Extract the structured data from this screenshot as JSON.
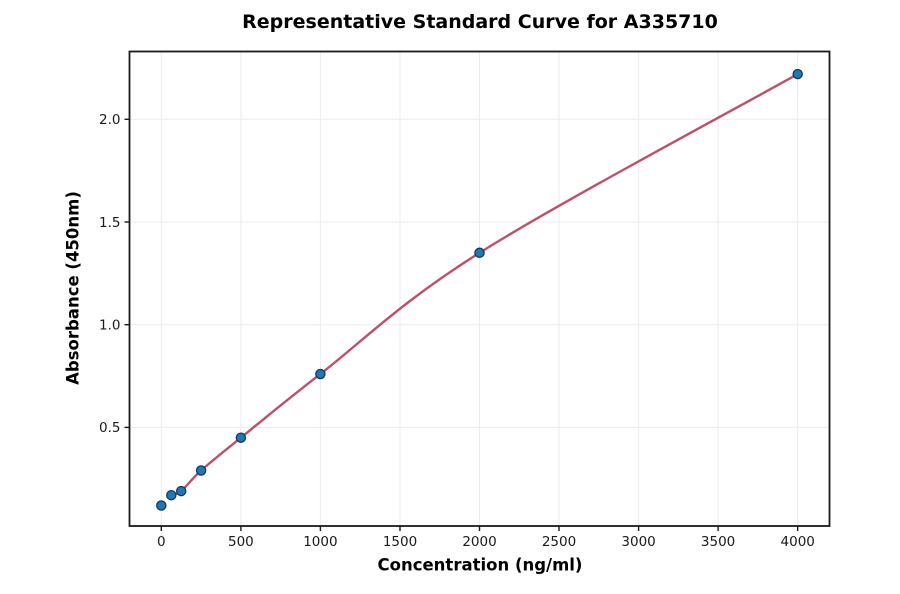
{
  "chart_data": {
    "type": "scatter",
    "title": "Representative Standard Curve for A335710",
    "xlabel": "Concentration (ng/ml)",
    "ylabel": "Absorbance (450nm)",
    "xlim": [
      -200,
      4200
    ],
    "ylim": [
      0.02,
      2.33
    ],
    "x_ticks": [
      0,
      500,
      1000,
      1500,
      2000,
      2500,
      3000,
      3500,
      4000
    ],
    "x_tick_labels": [
      "0",
      "500",
      "1000",
      "1500",
      "2000",
      "2500",
      "3000",
      "3500",
      "4000"
    ],
    "y_ticks": [
      0.5,
      1.0,
      1.5,
      2.0
    ],
    "y_tick_labels": [
      "0.5",
      "1.0",
      "1.5",
      "2.0"
    ],
    "grid": true,
    "legend_position": "none",
    "colors": {
      "marker_fill": "#1f77b4",
      "marker_edge": "#15395b",
      "curve": "#bd5168",
      "grid": "#ebebf0",
      "spine": "#1a1a1a",
      "tick_text": "#1a1a1a"
    },
    "series": [
      {
        "name": "standard-points",
        "type": "scatter",
        "x": [
          0,
          62.5,
          125,
          250,
          500,
          1000,
          2000,
          4000
        ],
        "y": [
          0.12,
          0.17,
          0.19,
          0.29,
          0.45,
          0.76,
          1.35,
          2.22
        ]
      },
      {
        "name": "fitted-curve",
        "type": "smooth-line",
        "x": [
          62.5,
          125,
          250,
          500,
          1000,
          2000,
          4000
        ],
        "y": [
          0.17,
          0.19,
          0.29,
          0.45,
          0.76,
          1.35,
          2.22
        ]
      }
    ]
  }
}
